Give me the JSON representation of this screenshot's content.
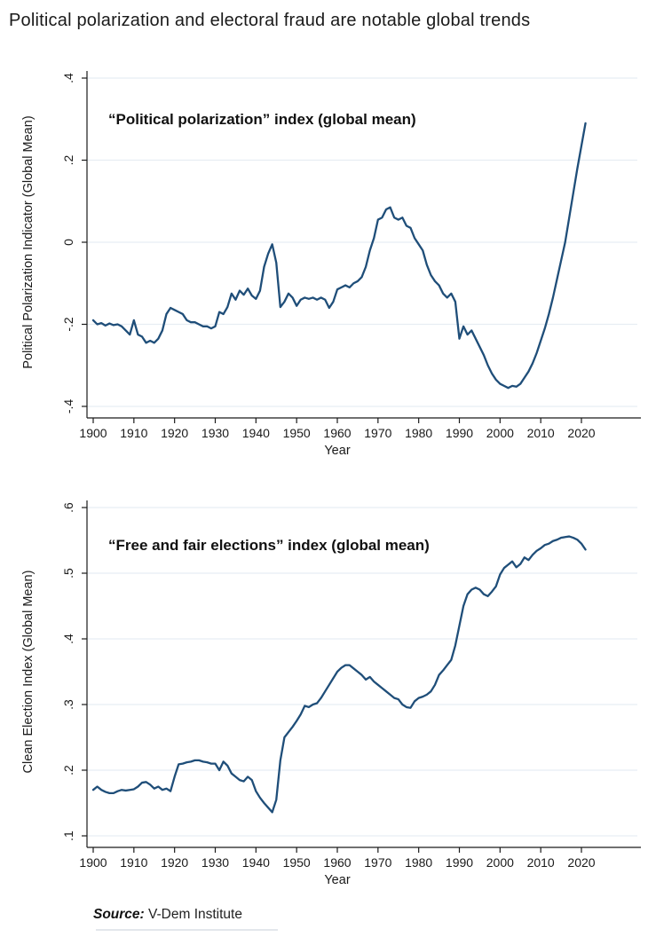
{
  "page": {
    "title": "Political polarization and electoral fraud are notable global trends",
    "source": {
      "label": "Source:",
      "text": " V-Dem Institute"
    }
  },
  "colors": {
    "line": "#1f4e79",
    "grid": "#e7edf3",
    "axis": "#1a1a1a",
    "text": "#1a1a1a",
    "background": "#ffffff"
  },
  "chart_data": [
    {
      "type": "line",
      "title": "“Political polarization” index (global mean)",
      "ylabel": "Political Polarization Indicator (Global Mean)",
      "xlabel": "Year",
      "grid": true,
      "legend": "none",
      "xlim": [
        1900,
        2020
      ],
      "ylim": [
        -0.4,
        0.4
      ],
      "xticks": [
        1900,
        1910,
        1920,
        1930,
        1940,
        1950,
        1960,
        1970,
        1980,
        1990,
        2000,
        2010,
        2020
      ],
      "yticks": [
        0.4,
        0.2,
        0,
        -0.2,
        -0.4
      ],
      "ytick_labels": [
        ".4",
        ".2",
        "0",
        "-.2",
        "-.4"
      ],
      "series": [
        {
          "name": "Political Polarization Indicator (Global Mean)",
          "x": [
            1900,
            1901,
            1902,
            1903,
            1904,
            1905,
            1906,
            1907,
            1908,
            1909,
            1910,
            1911,
            1912,
            1913,
            1914,
            1915,
            1916,
            1917,
            1918,
            1919,
            1920,
            1921,
            1922,
            1923,
            1924,
            1925,
            1926,
            1927,
            1928,
            1929,
            1930,
            1931,
            1932,
            1933,
            1934,
            1935,
            1936,
            1937,
            1938,
            1939,
            1940,
            1941,
            1942,
            1943,
            1944,
            1945,
            1946,
            1947,
            1948,
            1949,
            1950,
            1951,
            1952,
            1953,
            1954,
            1955,
            1956,
            1957,
            1958,
            1959,
            1960,
            1961,
            1962,
            1963,
            1964,
            1965,
            1966,
            1967,
            1968,
            1969,
            1970,
            1971,
            1972,
            1973,
            1974,
            1975,
            1976,
            1977,
            1978,
            1979,
            1980,
            1981,
            1982,
            1983,
            1984,
            1985,
            1986,
            1987,
            1988,
            1989,
            1990,
            1991,
            1992,
            1993,
            1994,
            1995,
            1996,
            1997,
            1998,
            1999,
            2000,
            2001,
            2002,
            2003,
            2004,
            2005,
            2006,
            2007,
            2008,
            2009,
            2010,
            2011,
            2012,
            2013,
            2014,
            2015,
            2016,
            2017,
            2018,
            2019,
            2020,
            2021
          ],
          "y": [
            -0.19,
            -0.2,
            -0.197,
            -0.203,
            -0.198,
            -0.202,
            -0.2,
            -0.205,
            -0.215,
            -0.225,
            -0.19,
            -0.225,
            -0.23,
            -0.245,
            -0.24,
            -0.245,
            -0.235,
            -0.215,
            -0.175,
            -0.16,
            -0.165,
            -0.17,
            -0.175,
            -0.19,
            -0.195,
            -0.195,
            -0.2,
            -0.205,
            -0.205,
            -0.21,
            -0.205,
            -0.17,
            -0.175,
            -0.158,
            -0.125,
            -0.14,
            -0.118,
            -0.128,
            -0.113,
            -0.13,
            -0.138,
            -0.118,
            -0.06,
            -0.028,
            -0.005,
            -0.05,
            -0.158,
            -0.145,
            -0.125,
            -0.135,
            -0.155,
            -0.14,
            -0.135,
            -0.138,
            -0.135,
            -0.14,
            -0.135,
            -0.14,
            -0.16,
            -0.145,
            -0.115,
            -0.11,
            -0.105,
            -0.11,
            -0.1,
            -0.095,
            -0.085,
            -0.06,
            -0.02,
            0.01,
            0.055,
            0.06,
            0.08,
            0.085,
            0.06,
            0.055,
            0.06,
            0.04,
            0.035,
            0.01,
            -0.005,
            -0.02,
            -0.055,
            -0.08,
            -0.095,
            -0.105,
            -0.125,
            -0.135,
            -0.125,
            -0.145,
            -0.235,
            -0.205,
            -0.225,
            -0.215,
            -0.235,
            -0.255,
            -0.275,
            -0.3,
            -0.32,
            -0.335,
            -0.345,
            -0.35,
            -0.355,
            -0.35,
            -0.352,
            -0.345,
            -0.33,
            -0.315,
            -0.295,
            -0.27,
            -0.24,
            -0.21,
            -0.175,
            -0.135,
            -0.09,
            -0.045,
            0.0,
            0.06,
            0.12,
            0.18,
            0.235,
            0.29
          ]
        }
      ]
    },
    {
      "type": "line",
      "title": "“Free and fair elections” index (global mean)",
      "ylabel": "Clean Election Index (Global Mean)",
      "xlabel": "Year",
      "grid": true,
      "legend": "none",
      "xlim": [
        1900,
        2020
      ],
      "ylim": [
        0.1,
        0.6
      ],
      "xticks": [
        1900,
        1910,
        1920,
        1930,
        1940,
        1950,
        1960,
        1970,
        1980,
        1990,
        2000,
        2010,
        2020
      ],
      "yticks": [
        0.6,
        0.5,
        0.4,
        0.3,
        0.2,
        0.1
      ],
      "ytick_labels": [
        ".6",
        ".5",
        ".4",
        ".3",
        ".2",
        ".1"
      ],
      "series": [
        {
          "name": "Clean Election Index (Global Mean)",
          "x": [
            1900,
            1901,
            1902,
            1903,
            1904,
            1905,
            1906,
            1907,
            1908,
            1909,
            1910,
            1911,
            1912,
            1913,
            1914,
            1915,
            1916,
            1917,
            1918,
            1919,
            1920,
            1921,
            1922,
            1923,
            1924,
            1925,
            1926,
            1927,
            1928,
            1929,
            1930,
            1931,
            1932,
            1933,
            1934,
            1935,
            1936,
            1937,
            1938,
            1939,
            1940,
            1941,
            1942,
            1943,
            1944,
            1945,
            1946,
            1947,
            1948,
            1949,
            1950,
            1951,
            1952,
            1953,
            1954,
            1955,
            1956,
            1957,
            1958,
            1959,
            1960,
            1961,
            1962,
            1963,
            1964,
            1965,
            1966,
            1967,
            1968,
            1969,
            1970,
            1971,
            1972,
            1973,
            1974,
            1975,
            1976,
            1977,
            1978,
            1979,
            1980,
            1981,
            1982,
            1983,
            1984,
            1985,
            1986,
            1987,
            1988,
            1989,
            1990,
            1991,
            1992,
            1993,
            1994,
            1995,
            1996,
            1997,
            1998,
            1999,
            2000,
            2001,
            2002,
            2003,
            2004,
            2005,
            2006,
            2007,
            2008,
            2009,
            2010,
            2011,
            2012,
            2013,
            2014,
            2015,
            2016,
            2017,
            2018,
            2019,
            2020,
            2021
          ],
          "y": [
            0.17,
            0.175,
            0.17,
            0.167,
            0.165,
            0.165,
            0.168,
            0.17,
            0.169,
            0.17,
            0.171,
            0.175,
            0.181,
            0.182,
            0.178,
            0.172,
            0.175,
            0.17,
            0.172,
            0.168,
            0.19,
            0.209,
            0.21,
            0.212,
            0.213,
            0.215,
            0.215,
            0.213,
            0.212,
            0.21,
            0.21,
            0.2,
            0.213,
            0.207,
            0.195,
            0.19,
            0.185,
            0.183,
            0.19,
            0.185,
            0.168,
            0.158,
            0.15,
            0.143,
            0.136,
            0.155,
            0.215,
            0.25,
            0.258,
            0.266,
            0.275,
            0.285,
            0.298,
            0.296,
            0.3,
            0.302,
            0.31,
            0.32,
            0.33,
            0.34,
            0.35,
            0.356,
            0.36,
            0.36,
            0.355,
            0.35,
            0.345,
            0.338,
            0.342,
            0.335,
            0.33,
            0.325,
            0.32,
            0.315,
            0.31,
            0.308,
            0.3,
            0.296,
            0.295,
            0.305,
            0.31,
            0.312,
            0.315,
            0.32,
            0.33,
            0.345,
            0.352,
            0.36,
            0.368,
            0.39,
            0.42,
            0.45,
            0.468,
            0.475,
            0.478,
            0.475,
            0.468,
            0.465,
            0.472,
            0.48,
            0.498,
            0.508,
            0.513,
            0.518,
            0.509,
            0.514,
            0.524,
            0.52,
            0.528,
            0.534,
            0.538,
            0.543,
            0.545,
            0.549,
            0.551,
            0.554,
            0.555,
            0.556,
            0.554,
            0.551,
            0.545,
            0.536
          ]
        }
      ]
    }
  ]
}
